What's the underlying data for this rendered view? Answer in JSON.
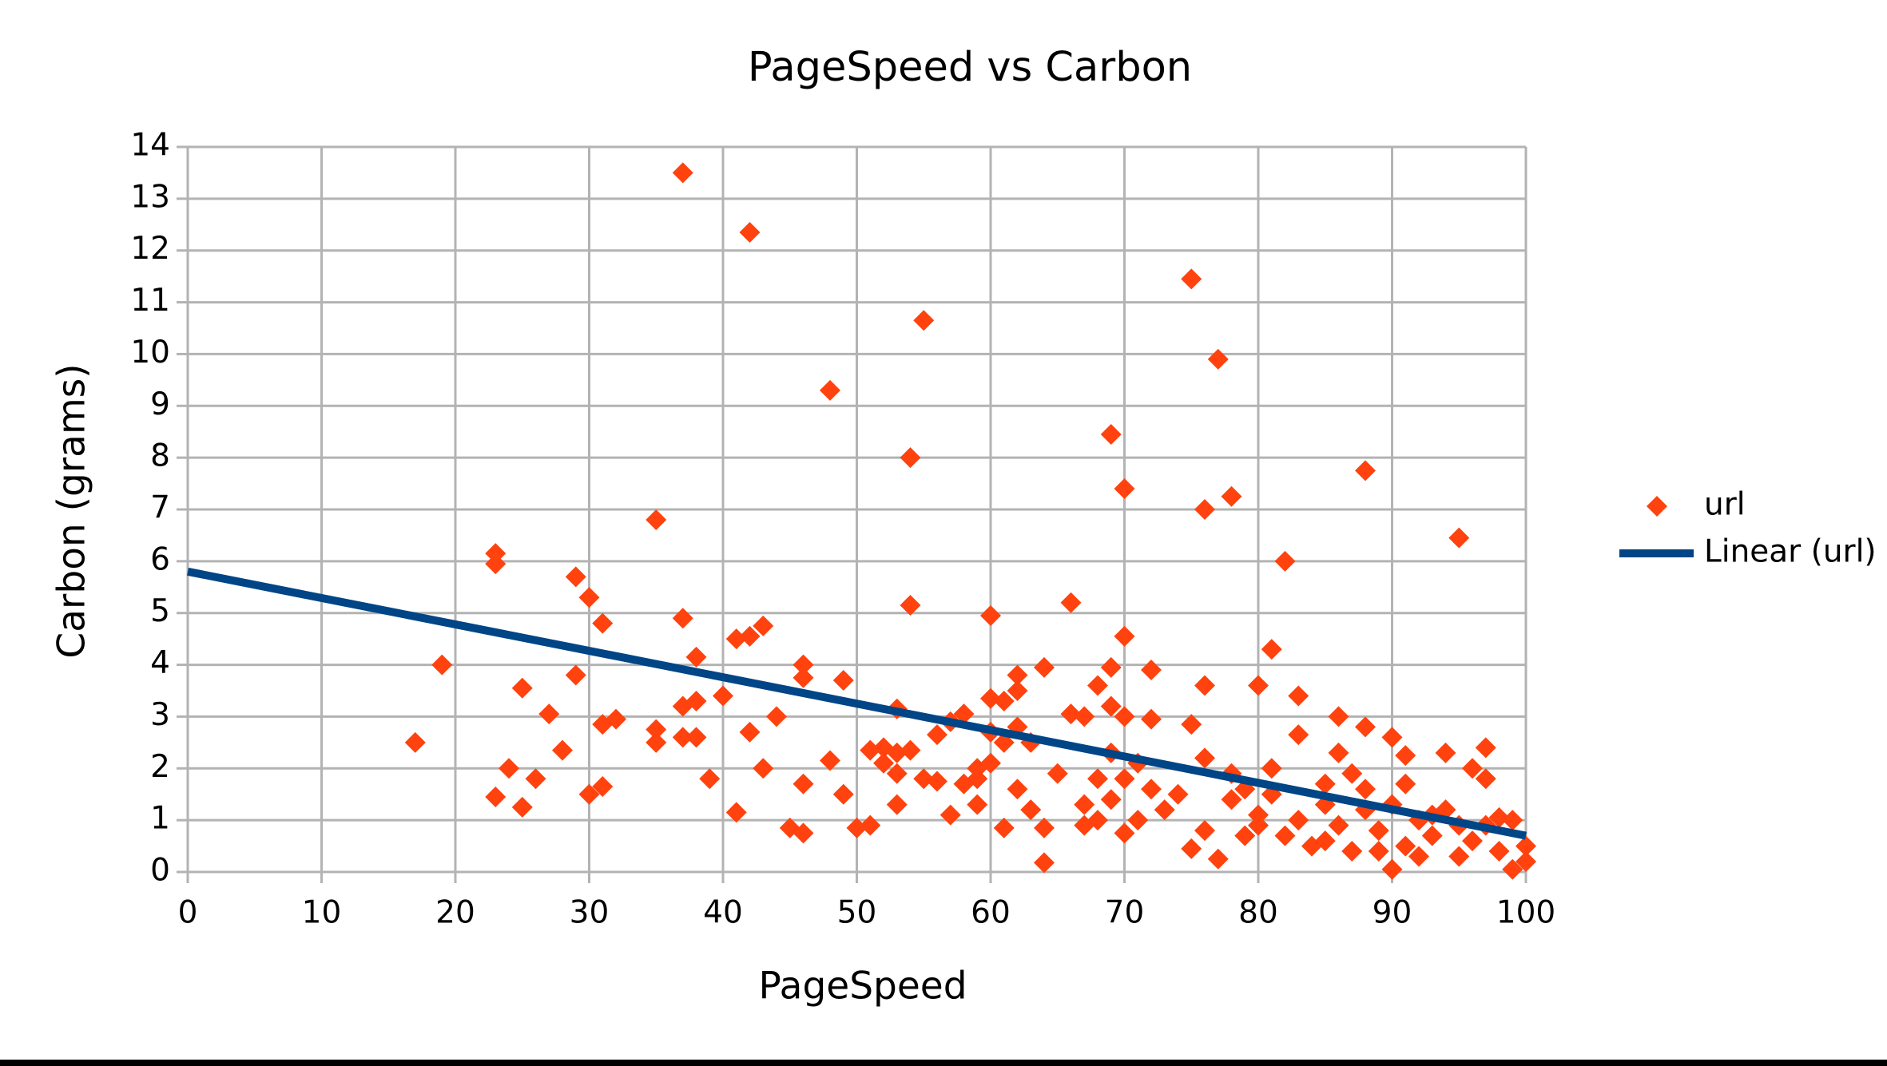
{
  "chart_data": {
    "type": "scatter",
    "title": "PageSpeed vs Carbon",
    "x_label": "PageSpeed",
    "y_label": "Carbon (grams)",
    "xlim": [
      0,
      100
    ],
    "xticks": [
      0,
      10,
      20,
      30,
      40,
      50,
      60,
      70,
      80,
      90,
      100
    ],
    "ylim": [
      0,
      14
    ],
    "yticks": [
      0,
      1,
      2,
      3,
      4,
      5,
      6,
      7,
      8,
      9,
      10,
      11,
      12,
      13,
      14
    ],
    "grid": true,
    "legend": "right",
    "series": [
      {
        "name": "url",
        "type": "scatter",
        "marker": "diamond",
        "color": "#ff420e",
        "x": [
          37,
          42,
          75,
          55,
          77,
          48,
          69,
          54,
          88,
          70,
          78,
          76,
          35,
          95,
          23,
          23,
          82,
          29,
          30,
          66,
          54,
          60,
          37,
          31,
          43,
          42,
          41,
          70,
          81,
          38,
          46,
          19,
          64,
          72,
          69,
          29,
          46,
          49,
          62,
          25,
          76,
          80,
          40,
          83,
          60,
          38,
          37,
          53,
          27,
          44,
          66,
          58,
          86,
          32,
          31,
          35,
          72,
          75,
          88,
          42,
          37,
          38,
          17,
          35,
          56,
          83,
          90,
          28,
          51,
          53,
          94,
          97,
          91,
          86,
          48,
          52,
          24,
          43,
          59,
          65,
          78,
          81,
          39,
          26,
          46,
          56,
          62,
          70,
          85,
          88,
          31,
          30,
          23,
          49,
          25,
          41,
          53,
          57,
          50,
          51,
          45,
          46,
          61,
          64,
          64,
          67,
          70,
          75,
          77,
          90,
          92,
          99,
          100,
          97,
          98,
          99,
          100,
          96,
          95,
          93,
          94,
          92,
          91,
          89,
          88,
          87,
          86,
          85,
          84,
          83,
          82,
          81,
          80,
          79,
          78,
          76,
          74,
          73,
          72,
          71,
          69,
          68,
          67,
          63,
          59,
          58,
          55,
          90,
          91,
          93,
          95,
          96,
          97,
          98,
          89,
          85,
          87,
          80,
          79,
          71,
          69,
          68,
          76,
          61,
          63,
          60,
          57,
          62,
          61,
          69,
          68,
          67,
          70,
          52,
          54,
          59,
          53,
          60,
          62
        ],
        "values": [
          13.5,
          12.35,
          11.45,
          10.65,
          9.9,
          9.3,
          8.45,
          8.0,
          7.75,
          7.4,
          7.25,
          7.0,
          6.8,
          6.45,
          6.15,
          5.95,
          6.0,
          5.7,
          5.3,
          5.2,
          5.15,
          4.95,
          4.9,
          4.8,
          4.75,
          4.55,
          4.5,
          4.55,
          4.3,
          4.15,
          4.0,
          4.0,
          3.95,
          3.9,
          3.95,
          3.8,
          3.75,
          3.7,
          3.8,
          3.55,
          3.6,
          3.6,
          3.4,
          3.4,
          3.35,
          3.3,
          3.2,
          3.15,
          3.05,
          3.0,
          3.05,
          3.05,
          3.0,
          2.95,
          2.85,
          2.75,
          2.95,
          2.85,
          2.8,
          2.7,
          2.6,
          2.6,
          2.5,
          2.5,
          2.65,
          2.65,
          2.6,
          2.35,
          2.35,
          2.3,
          2.3,
          2.4,
          2.25,
          2.3,
          2.15,
          2.1,
          2.0,
          2.0,
          2.0,
          1.9,
          1.9,
          2.0,
          1.8,
          1.8,
          1.7,
          1.75,
          1.6,
          1.8,
          1.7,
          1.6,
          1.65,
          1.5,
          1.45,
          1.5,
          1.25,
          1.15,
          1.3,
          1.1,
          0.85,
          0.9,
          0.85,
          0.75,
          0.85,
          0.85,
          0.18,
          0.9,
          0.75,
          0.45,
          0.25,
          0.05,
          0.3,
          0.05,
          0.5,
          0.9,
          1.05,
          1.0,
          0.2,
          0.6,
          0.3,
          0.7,
          1.2,
          1.0,
          0.5,
          0.8,
          1.2,
          0.4,
          0.9,
          1.3,
          0.5,
          1.0,
          0.7,
          1.5,
          1.1,
          0.7,
          1.4,
          0.8,
          1.5,
          1.2,
          1.6,
          1.0,
          1.4,
          1.0,
          1.3,
          1.2,
          1.3,
          1.7,
          1.8,
          1.3,
          1.7,
          1.1,
          0.9,
          2.0,
          1.8,
          0.4,
          0.4,
          0.6,
          1.9,
          0.9,
          1.6,
          2.1,
          2.3,
          1.8,
          2.2,
          2.5,
          2.5,
          2.1,
          2.9,
          3.5,
          3.3,
          3.2,
          3.6,
          3.0,
          3.0,
          2.4,
          2.35,
          1.8,
          1.9,
          2.7,
          2.8
        ]
      },
      {
        "name": "Linear (url)",
        "type": "line",
        "color": "#004586",
        "x": [
          0,
          100
        ],
        "values": [
          5.8,
          0.7
        ]
      }
    ]
  }
}
